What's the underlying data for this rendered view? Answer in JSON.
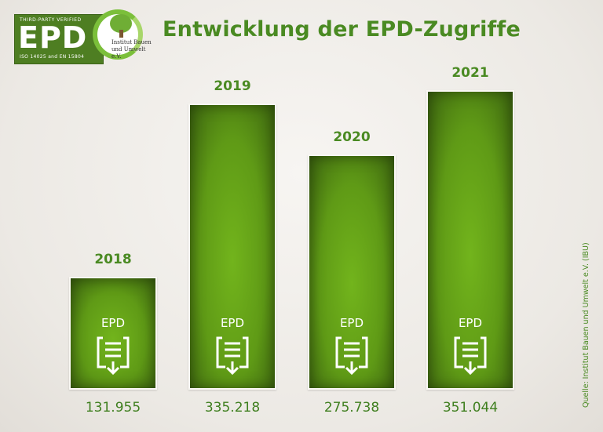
{
  "logo": {
    "top": "THIRD-PARTY VERIFIED",
    "main": "EPD",
    "iso": "ISO 14025 and EN 15804",
    "org_line1": "Institut Bauen",
    "org_line2": "und Umwelt e.V."
  },
  "source": "Quelle: Institut Bauen und Umwelt e.V. (IBU)",
  "chart_data": {
    "type": "bar",
    "title": "Entwicklung der EPD-Zugriffe",
    "categories": [
      "2018",
      "2019",
      "2020",
      "2021"
    ],
    "values": [
      131955,
      335218,
      275738,
      351044
    ],
    "value_labels": [
      "131.955",
      "335.218",
      "275.738",
      "351.044"
    ],
    "bar_label": "EPD",
    "xlabel": "",
    "ylabel": "",
    "ylim": [
      0,
      351044
    ],
    "colors": {
      "bar": "#5f9a16",
      "text": "#4a8a22"
    }
  }
}
